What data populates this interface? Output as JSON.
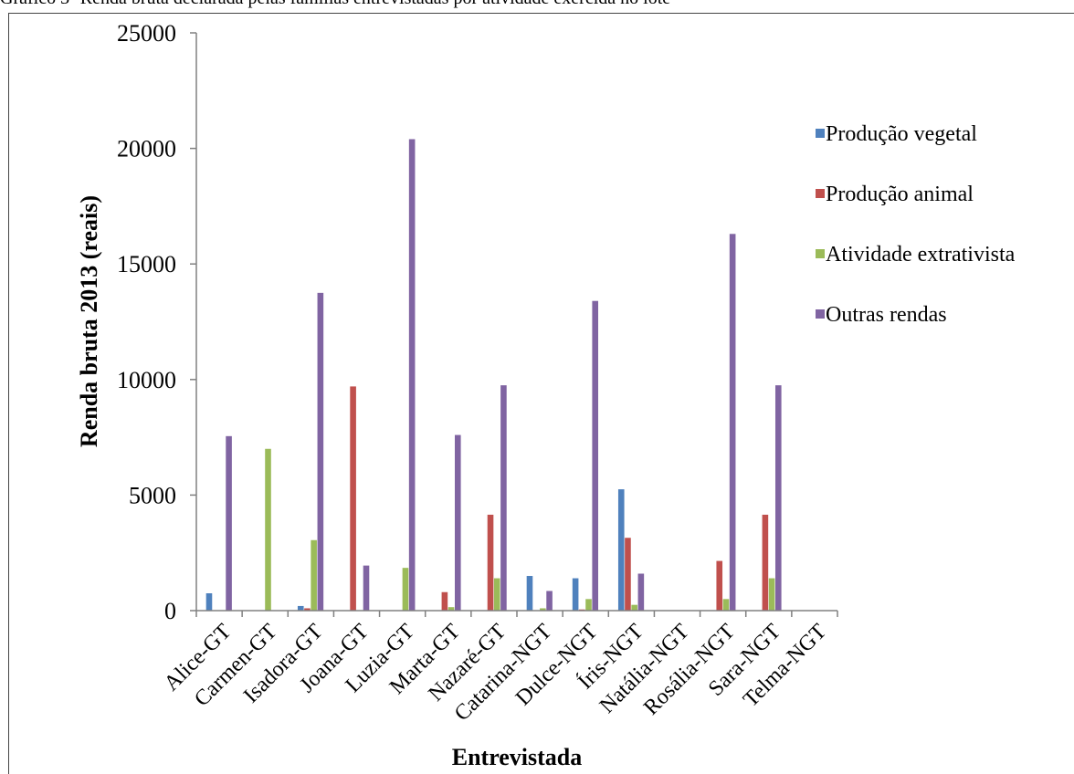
{
  "chart_data": {
    "type": "bar",
    "title": "Gráfico 3- Renda bruta declarada pelas famílias entrevistadas por atividade exercida no lote",
    "xlabel": "Entrevistada",
    "ylabel": "Renda bruta 2013 (reais)",
    "ylim": [
      0,
      25000
    ],
    "yticks": [
      "0",
      "5000",
      "10000",
      "15000",
      "20000",
      "25000"
    ],
    "grid": false,
    "legend_position": "right",
    "categories": [
      "Alice-GT",
      "Carmen-GT",
      "Isadora-GT",
      "Joana-GT",
      "Luzia-GT",
      "Marta-GT",
      "Nazaré-GT",
      "Catarina-NGT",
      "Dulce-NGT",
      "Íris-NGT",
      "Natália-NGT",
      "Rosália-NGT",
      "Sara-NGT",
      "Telma-NGT"
    ],
    "series": [
      {
        "name": "Produção vegetal",
        "color": "#4f81bd",
        "values": [
          750,
          0,
          200,
          0,
          0,
          0,
          0,
          1500,
          1400,
          5250,
          0,
          0,
          0,
          0
        ]
      },
      {
        "name": "Produção animal",
        "color": "#c0504d",
        "values": [
          0,
          0,
          100,
          9700,
          0,
          800,
          4150,
          0,
          50,
          3150,
          0,
          2150,
          4150,
          0
        ]
      },
      {
        "name": "Atividade extrativista",
        "color": "#9bbb59",
        "values": [
          0,
          7000,
          3050,
          0,
          1850,
          150,
          1400,
          100,
          500,
          250,
          0,
          500,
          1400,
          0
        ]
      },
      {
        "name": "Outras rendas",
        "color": "#8064a2",
        "values": [
          7550,
          0,
          13750,
          1950,
          20400,
          7600,
          9750,
          850,
          13400,
          1600,
          0,
          16300,
          9750,
          0
        ]
      }
    ]
  }
}
